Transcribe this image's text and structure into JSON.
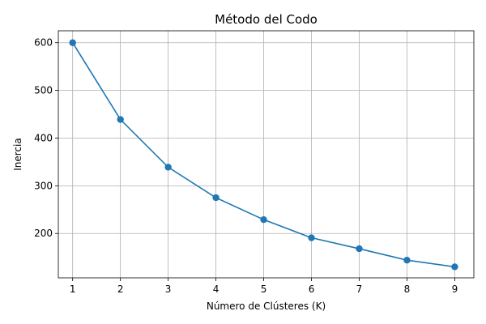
{
  "chart_data": {
    "type": "line",
    "title": "Método del Codo",
    "xlabel": "Número de Clústeres (K)",
    "ylabel": "Inercia",
    "x": [
      1,
      2,
      3,
      4,
      5,
      6,
      7,
      8,
      9
    ],
    "series": [
      {
        "values": [
          600,
          439,
          339,
          275,
          229,
          191,
          168,
          144,
          130
        ],
        "color": "#1f77b4",
        "marker": "circle"
      }
    ],
    "xlim": [
      0.7,
      9.4
    ],
    "ylim": [
      107,
      625
    ],
    "x_ticks": [
      1,
      2,
      3,
      4,
      5,
      6,
      7,
      8,
      9
    ],
    "y_ticks": [
      200,
      300,
      400,
      500,
      600
    ],
    "grid": true,
    "legend": false
  }
}
